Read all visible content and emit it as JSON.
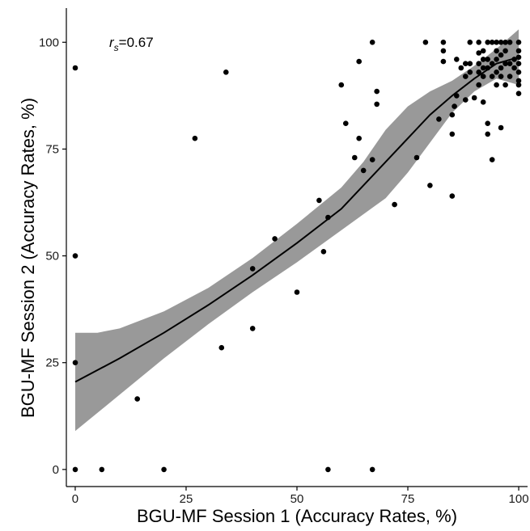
{
  "chart_data": {
    "type": "scatter",
    "xlabel": "BGU-MF Session 1 (Accuracy Rates, %)",
    "ylabel": "BGU-MF Session 2 (Accuracy Rates, %)",
    "xlim": [
      -2,
      102
    ],
    "ylim": [
      -4,
      108
    ],
    "xticks": [
      0,
      25,
      50,
      75,
      100
    ],
    "yticks": [
      0,
      25,
      50,
      75,
      100
    ],
    "xtick_labels": [
      "0",
      "25",
      "50",
      "75",
      "100"
    ],
    "ytick_labels": [
      "0",
      "25",
      "50",
      "75",
      "100"
    ],
    "grid": false,
    "annotation": {
      "symbol": "r",
      "subscript": "s",
      "text": "=0.67"
    },
    "colors": {
      "points": "#000000",
      "fit_line": "#000000",
      "confidence_band": "#999999",
      "axes": "#000000"
    },
    "points": [
      [
        0,
        94
      ],
      [
        0,
        50
      ],
      [
        0,
        25
      ],
      [
        0,
        0
      ],
      [
        6,
        0
      ],
      [
        20,
        0
      ],
      [
        57,
        0
      ],
      [
        67,
        0
      ],
      [
        14,
        16.5
      ],
      [
        27,
        77.5
      ],
      [
        34,
        93
      ],
      [
        33,
        28.5
      ],
      [
        40,
        33
      ],
      [
        40,
        47
      ],
      [
        45,
        54
      ],
      [
        50,
        41.5
      ],
      [
        55,
        63
      ],
      [
        56,
        51
      ],
      [
        57,
        59
      ],
      [
        60,
        90
      ],
      [
        61,
        81
      ],
      [
        63,
        73
      ],
      [
        64,
        77.5
      ],
      [
        64,
        95.5
      ],
      [
        65,
        70
      ],
      [
        67,
        100
      ],
      [
        67,
        72.5
      ],
      [
        68,
        85.5
      ],
      [
        68,
        88.5
      ],
      [
        72,
        62
      ],
      [
        77,
        73
      ],
      [
        79,
        100
      ],
      [
        80,
        66.5
      ],
      [
        82,
        82
      ],
      [
        83,
        100
      ],
      [
        83,
        98
      ],
      [
        83,
        95.5
      ],
      [
        85,
        64
      ],
      [
        85,
        78.5
      ],
      [
        85,
        83
      ],
      [
        85.5,
        85
      ],
      [
        86,
        87.5
      ],
      [
        86,
        96
      ],
      [
        87,
        94
      ],
      [
        88,
        95
      ],
      [
        88,
        92
      ],
      [
        88,
        86.5
      ],
      [
        89,
        93
      ],
      [
        89,
        95
      ],
      [
        89,
        100
      ],
      [
        90,
        87
      ],
      [
        91,
        90
      ],
      [
        91,
        93
      ],
      [
        91,
        95
      ],
      [
        91,
        97.5
      ],
      [
        91,
        100
      ],
      [
        92,
        94
      ],
      [
        92,
        96
      ],
      [
        92,
        98
      ],
      [
        92,
        92
      ],
      [
        92,
        86
      ],
      [
        93,
        81
      ],
      [
        93,
        78.5
      ],
      [
        93,
        100
      ],
      [
        93,
        96
      ],
      [
        93,
        94
      ],
      [
        94,
        72.5
      ],
      [
        94,
        92
      ],
      [
        94,
        95
      ],
      [
        94,
        100
      ],
      [
        95,
        90
      ],
      [
        95,
        93
      ],
      [
        95,
        96
      ],
      [
        95,
        98
      ],
      [
        95,
        100
      ],
      [
        96,
        80
      ],
      [
        96,
        92
      ],
      [
        96,
        94
      ],
      [
        96,
        97
      ],
      [
        96,
        100
      ],
      [
        97,
        90
      ],
      [
        97,
        95
      ],
      [
        97,
        98
      ],
      [
        97,
        100
      ],
      [
        98,
        92
      ],
      [
        98,
        95
      ],
      [
        98,
        100
      ],
      [
        99,
        94
      ],
      [
        99,
        96
      ],
      [
        100,
        88
      ],
      [
        100,
        90
      ],
      [
        100,
        91
      ],
      [
        100,
        93
      ],
      [
        100,
        95
      ],
      [
        100,
        96.5
      ],
      [
        100,
        98
      ],
      [
        100,
        100
      ]
    ],
    "fit_line": [
      [
        0,
        20.5
      ],
      [
        10,
        26
      ],
      [
        20,
        32
      ],
      [
        30,
        38.5
      ],
      [
        40,
        45.5
      ],
      [
        50,
        53
      ],
      [
        60,
        61
      ],
      [
        70,
        72
      ],
      [
        80,
        83
      ],
      [
        85,
        87.5
      ],
      [
        90,
        91.5
      ],
      [
        95,
        95
      ],
      [
        100,
        96.5
      ]
    ],
    "band_upper": [
      [
        0,
        32
      ],
      [
        5,
        32
      ],
      [
        10,
        33
      ],
      [
        20,
        37
      ],
      [
        30,
        42.5
      ],
      [
        40,
        49.5
      ],
      [
        50,
        57.5
      ],
      [
        60,
        66
      ],
      [
        65,
        72
      ],
      [
        70,
        79.5
      ],
      [
        75,
        85
      ],
      [
        80,
        88.5
      ],
      [
        85,
        91
      ],
      [
        90,
        94.5
      ],
      [
        95,
        98.5
      ],
      [
        100,
        103
      ]
    ],
    "band_lower": [
      [
        100,
        90
      ],
      [
        95,
        91.5
      ],
      [
        90,
        88.5
      ],
      [
        85,
        83.5
      ],
      [
        80,
        76.5
      ],
      [
        75,
        69.5
      ],
      [
        70,
        63.5
      ],
      [
        60,
        56
      ],
      [
        50,
        48.5
      ],
      [
        40,
        41.5
      ],
      [
        30,
        34
      ],
      [
        20,
        26
      ],
      [
        10,
        17.5
      ],
      [
        0,
        9
      ]
    ]
  }
}
